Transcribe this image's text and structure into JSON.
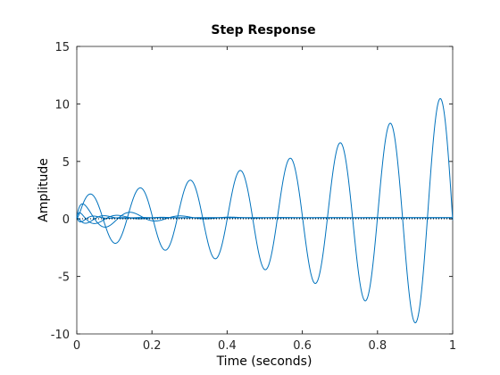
{
  "chart_data": {
    "type": "line",
    "title": "Step Response",
    "xlabel": "Time (seconds)",
    "ylabel": "Amplitude",
    "xlim": [
      0,
      1
    ],
    "ylim": [
      -10,
      15
    ],
    "x_ticks": [
      "0",
      "0.2",
      "0.4",
      "0.6",
      "0.8",
      "1"
    ],
    "y_ticks": [
      "15",
      "10",
      "5",
      "0",
      "-5",
      "-10"
    ],
    "grid": false,
    "line_color": "#0072BD",
    "series": [
      {
        "growing_oscillation": true,
        "amplitude_start": 2.2,
        "period": 0.133,
        "peaks": [
          [
            0.035,
            2.1
          ],
          [
            0.165,
            2.3
          ],
          [
            0.3,
            2.9
          ],
          [
            0.432,
            3.7
          ],
          [
            0.565,
            4.8
          ],
          [
            0.697,
            6.2
          ],
          [
            0.83,
            8.0
          ],
          [
            0.962,
            10.3
          ]
        ],
        "troughs": [
          [
            0.1,
            -2.2
          ],
          [
            0.232,
            -2.5
          ],
          [
            0.365,
            -3.3
          ],
          [
            0.497,
            -4.2
          ],
          [
            0.63,
            -5.5
          ],
          [
            0.762,
            -7.0
          ],
          [
            0.895,
            -9.1
          ]
        ]
      },
      {
        "damped_oscillation": true,
        "amplitude_start": 1.5,
        "decay": 8,
        "period": 0.133
      },
      {
        "damped_oscillation": true,
        "amplitude_start": 1.0,
        "decay": 14,
        "period": 0.12
      },
      {
        "damped_oscillation": true,
        "amplitude_start": 0.8,
        "decay": 20,
        "period": 0.1
      },
      {
        "damped_oscillation": true,
        "amplitude_start": 0.6,
        "decay": 30,
        "period": 0.08
      }
    ]
  }
}
